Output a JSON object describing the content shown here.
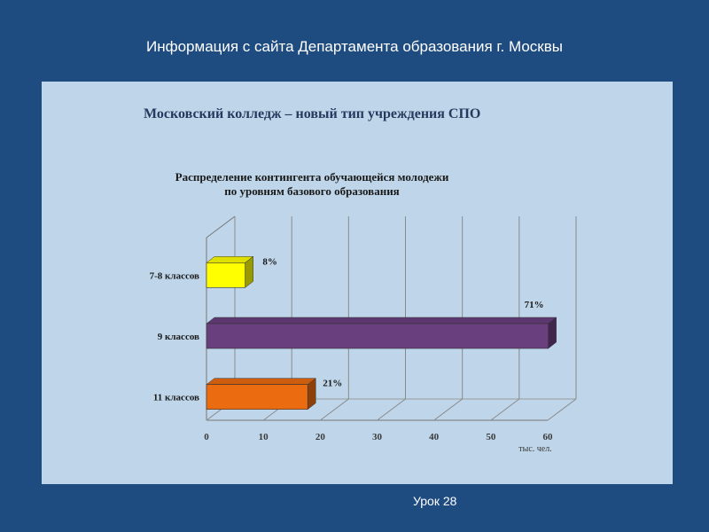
{
  "slide": {
    "title": "Информация с сайта Департамента образования г. Москвы",
    "footer": "Урок 28"
  },
  "panel": {
    "title": "Московский колледж – новый тип учреждения СПО"
  },
  "chart_data": {
    "type": "bar",
    "orientation": "horizontal",
    "title_line1": "Распределение контингента обучающейся молодежи",
    "title_line2": "по уровням базового образования",
    "categories": [
      "7-8 классов",
      "9 классов",
      "11 классов"
    ],
    "values": [
      6.8,
      60.1,
      17.8
    ],
    "data_labels": [
      "8%",
      "71%",
      "21%"
    ],
    "colors": [
      "#ffff00",
      "#6a3f7e",
      "#ea6b10"
    ],
    "xlabel": "тыс. чел.",
    "xlim": [
      0,
      60
    ],
    "xticks": [
      "0",
      "10",
      "20",
      "30",
      "40",
      "50",
      "60"
    ],
    "grid": true,
    "style": "3d"
  }
}
